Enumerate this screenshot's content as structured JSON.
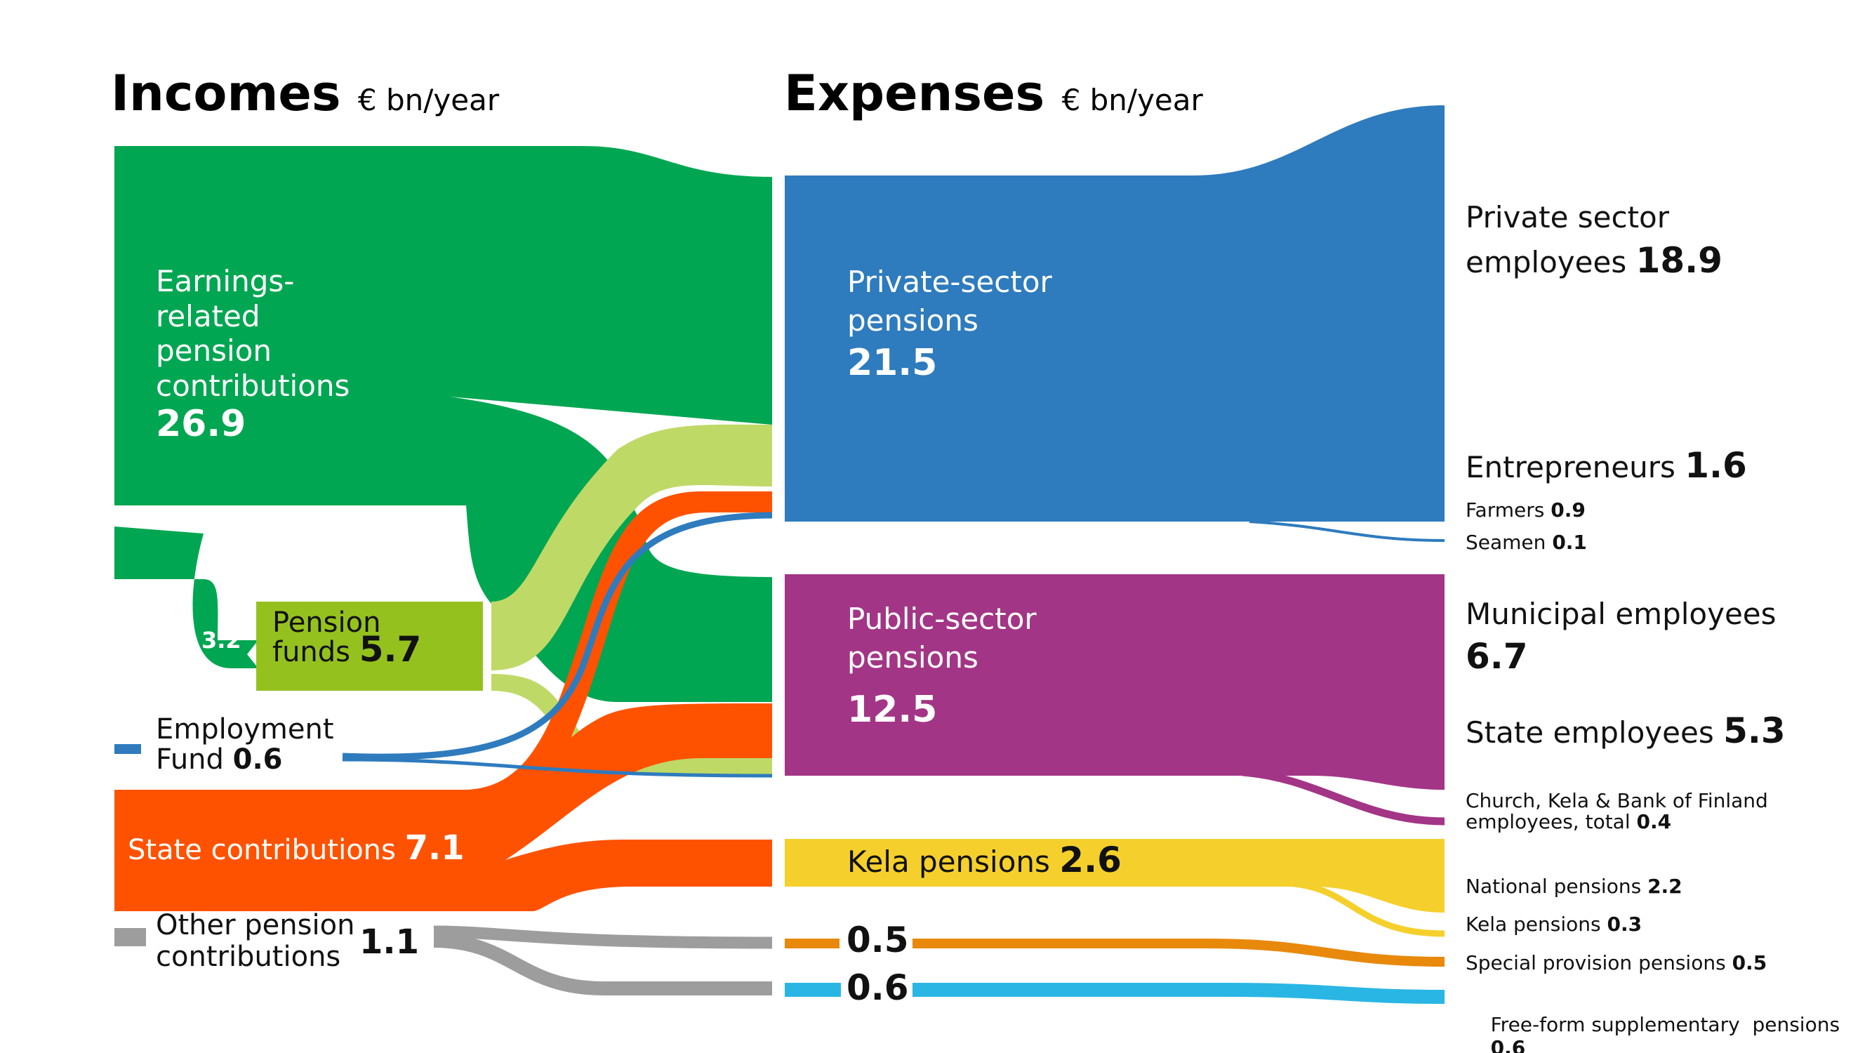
{
  "headers": {
    "incomes_title": "Incomes",
    "incomes_unit": "€ bn/year",
    "expenses_title": "Expenses",
    "expenses_unit": "€ bn/year"
  },
  "colors": {
    "earnings_green": "#00A651",
    "pension_funds": "#95C11F",
    "pension_funds_flow": "#BFD967",
    "employment_fund": "#2E7BBE",
    "state_orange": "#FF5200",
    "other_grey": "#9D9D9D",
    "private_blue": "#2E7BBE",
    "public_purple": "#A33586",
    "kela_yellow": "#F5D02C",
    "special_orange": "#E8890C",
    "freeform_cyan": "#29B6E4"
  },
  "incomes": {
    "earnings": {
      "label_line1": "Earnings-",
      "label_line2": "related",
      "label_line3": "pension",
      "label_line4": "contributions",
      "value": "26.9"
    },
    "earnings_to_funds_value": "3.2",
    "pension_funds": {
      "label_line1": "Pension",
      "label_line2": "funds",
      "value": "5.7"
    },
    "employment_fund": {
      "label_line1": "Employment",
      "label_line2": "Fund",
      "value": "0.6"
    },
    "state": {
      "label": "State contributions",
      "value": "7.1"
    },
    "other": {
      "label_line1": "Other pension",
      "label_line2": "contributions",
      "value": "1.1"
    }
  },
  "expenses": {
    "private": {
      "label_line1": "Private-sector",
      "label_line2": "pensions",
      "value": "21.5"
    },
    "public": {
      "label_line1": "Public-sector",
      "label_line2": "pensions",
      "value": "12.5"
    },
    "kela": {
      "label": "Kela pensions",
      "value": "2.6"
    },
    "special_value": "0.5",
    "freeform_value": "0.6"
  },
  "recipients": {
    "private_sector": {
      "label_line1": "Private sector",
      "label_line2": "employees",
      "value": "18.9"
    },
    "entrepreneurs": {
      "label": "Entrepreneurs",
      "value": "1.6"
    },
    "farmers": {
      "label": "Farmers",
      "value": "0.9"
    },
    "seamen": {
      "label": "Seamen",
      "value": "0.1"
    },
    "municipal": {
      "label": "Municipal employees",
      "value": "6.7"
    },
    "state_employees": {
      "label": "State employees",
      "value": "5.3"
    },
    "church": {
      "label_line1": "Church, Kela & Bank of Finland",
      "label_line2": "employees, total",
      "value": "0.4"
    },
    "national": {
      "label": "National pensions",
      "value": "2.2"
    },
    "kela_small": {
      "label": "Kela pensions",
      "value": "0.3"
    },
    "special": {
      "label": "Special provision pensions",
      "value": "0.5"
    },
    "freeform": {
      "label": "Free-form supplementary  pensions",
      "value": "0,6"
    }
  }
}
